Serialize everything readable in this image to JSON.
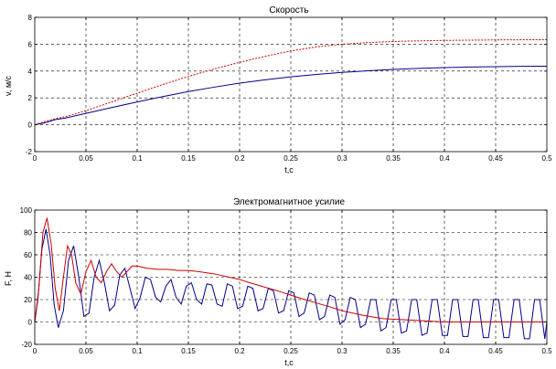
{
  "chart_data": [
    {
      "type": "line",
      "title": "Скорость",
      "xlabel": "t,c",
      "ylabel": "v, м/с",
      "xlim": [
        0,
        0.5
      ],
      "ylim": [
        -2,
        8
      ],
      "xticks": [
        0,
        0.05,
        0.1,
        0.15,
        0.2,
        0.25,
        0.3,
        0.35,
        0.4,
        0.45,
        0.5
      ],
      "yticks": [
        -2,
        0,
        2,
        4,
        6,
        8
      ],
      "grid": true,
      "series": [
        {
          "color": "#00008b",
          "style": "solid",
          "x": [
            0,
            0.01,
            0.02,
            0.03,
            0.05,
            0.075,
            0.1,
            0.125,
            0.15,
            0.175,
            0.2,
            0.225,
            0.25,
            0.275,
            0.3,
            0.325,
            0.35,
            0.375,
            0.4,
            0.425,
            0.45,
            0.475,
            0.5
          ],
          "y": [
            0,
            0.15,
            0.38,
            0.5,
            0.85,
            1.28,
            1.7,
            2.1,
            2.47,
            2.8,
            3.1,
            3.35,
            3.57,
            3.75,
            3.9,
            4.02,
            4.12,
            4.2,
            4.26,
            4.3,
            4.33,
            4.35,
            4.36
          ]
        },
        {
          "color": "#cc0000",
          "style": "dashed",
          "x": [
            0,
            0.01,
            0.02,
            0.03,
            0.05,
            0.075,
            0.1,
            0.125,
            0.15,
            0.175,
            0.2,
            0.225,
            0.25,
            0.275,
            0.3,
            0.325,
            0.35,
            0.375,
            0.4,
            0.425,
            0.45,
            0.475,
            0.5
          ],
          "y": [
            0,
            0.25,
            0.45,
            0.6,
            1.05,
            1.7,
            2.35,
            3.0,
            3.6,
            4.15,
            4.65,
            5.1,
            5.5,
            5.8,
            6.0,
            6.12,
            6.2,
            6.25,
            6.28,
            6.3,
            6.32,
            6.33,
            6.34
          ]
        }
      ]
    },
    {
      "type": "line",
      "title": "Электромагнитное усилие",
      "xlabel": "t,c",
      "ylabel": "F, H",
      "xlim": [
        0,
        0.5
      ],
      "ylim": [
        -20,
        100
      ],
      "xticks": [
        0,
        0.05,
        0.1,
        0.15,
        0.2,
        0.25,
        0.3,
        0.35,
        0.4,
        0.45,
        0.5
      ],
      "yticks": [
        -20,
        0,
        20,
        40,
        60,
        80,
        100
      ],
      "grid": true,
      "series": [
        {
          "color": "#00008b",
          "style": "solid",
          "x": [
            0,
            0.003,
            0.007,
            0.011,
            0.015,
            0.019,
            0.023,
            0.028,
            0.033,
            0.038,
            0.043,
            0.048,
            0.053,
            0.058,
            0.063,
            0.068,
            0.073,
            0.078,
            0.083,
            0.088,
            0.093,
            0.098,
            0.103,
            0.108,
            0.113,
            0.118,
            0.123,
            0.128,
            0.133,
            0.138,
            0.143,
            0.148,
            0.153,
            0.158,
            0.163,
            0.168,
            0.173,
            0.178,
            0.183,
            0.188,
            0.193,
            0.198,
            0.203,
            0.208,
            0.213,
            0.218,
            0.223,
            0.228,
            0.233,
            0.238,
            0.243,
            0.248,
            0.253,
            0.258,
            0.263,
            0.268,
            0.273,
            0.278,
            0.283,
            0.288,
            0.293,
            0.298,
            0.303,
            0.308,
            0.313,
            0.318,
            0.323,
            0.328,
            0.333,
            0.338,
            0.343,
            0.348,
            0.353,
            0.358,
            0.363,
            0.368,
            0.373,
            0.378,
            0.383,
            0.388,
            0.393,
            0.398,
            0.403,
            0.408,
            0.413,
            0.418,
            0.423,
            0.428,
            0.433,
            0.438,
            0.443,
            0.448,
            0.453,
            0.458,
            0.463,
            0.468,
            0.473,
            0.478,
            0.483,
            0.488,
            0.493,
            0.498,
            0.5
          ],
          "y": [
            0,
            20,
            65,
            83,
            60,
            15,
            -5,
            10,
            55,
            68,
            40,
            5,
            8,
            40,
            55,
            35,
            10,
            15,
            42,
            48,
            30,
            12,
            22,
            40,
            38,
            22,
            18,
            32,
            38,
            22,
            16,
            32,
            35,
            20,
            16,
            34,
            33,
            16,
            14,
            34,
            32,
            12,
            14,
            32,
            30,
            10,
            12,
            30,
            28,
            8,
            10,
            28,
            26,
            5,
            8,
            26,
            24,
            2,
            5,
            24,
            22,
            -2,
            2,
            22,
            20,
            -5,
            -2,
            20,
            20,
            -8,
            -5,
            20,
            20,
            -10,
            -8,
            20,
            20,
            -12,
            -10,
            20,
            20,
            -12,
            -12,
            20,
            20,
            -13,
            -13,
            20,
            20,
            -14,
            -14,
            20,
            20,
            -14,
            -14,
            20,
            20,
            -15,
            -15,
            20,
            20,
            -15,
            0
          ]
        },
        {
          "color": "#cc0000",
          "style": "solid",
          "x": [
            0,
            0.004,
            0.008,
            0.012,
            0.016,
            0.02,
            0.024,
            0.028,
            0.032,
            0.036,
            0.04,
            0.045,
            0.05,
            0.055,
            0.06,
            0.065,
            0.07,
            0.075,
            0.08,
            0.085,
            0.09,
            0.095,
            0.1,
            0.11,
            0.12,
            0.13,
            0.14,
            0.15,
            0.16,
            0.175,
            0.19,
            0.2,
            0.21,
            0.225,
            0.24,
            0.25,
            0.26,
            0.275,
            0.29,
            0.3,
            0.32,
            0.34,
            0.36,
            0.38,
            0.4,
            0.42,
            0.44,
            0.46,
            0.48,
            0.5
          ],
          "y": [
            0,
            30,
            80,
            93,
            70,
            30,
            10,
            40,
            68,
            60,
            35,
            25,
            45,
            55,
            40,
            35,
            45,
            52,
            45,
            40,
            45,
            50,
            50,
            48,
            47,
            47,
            46,
            46,
            45,
            43,
            40,
            38,
            35,
            31,
            27,
            24,
            21,
            17,
            13,
            10,
            6,
            3,
            2,
            1,
            0,
            0,
            0,
            0,
            0,
            0
          ]
        }
      ]
    }
  ]
}
